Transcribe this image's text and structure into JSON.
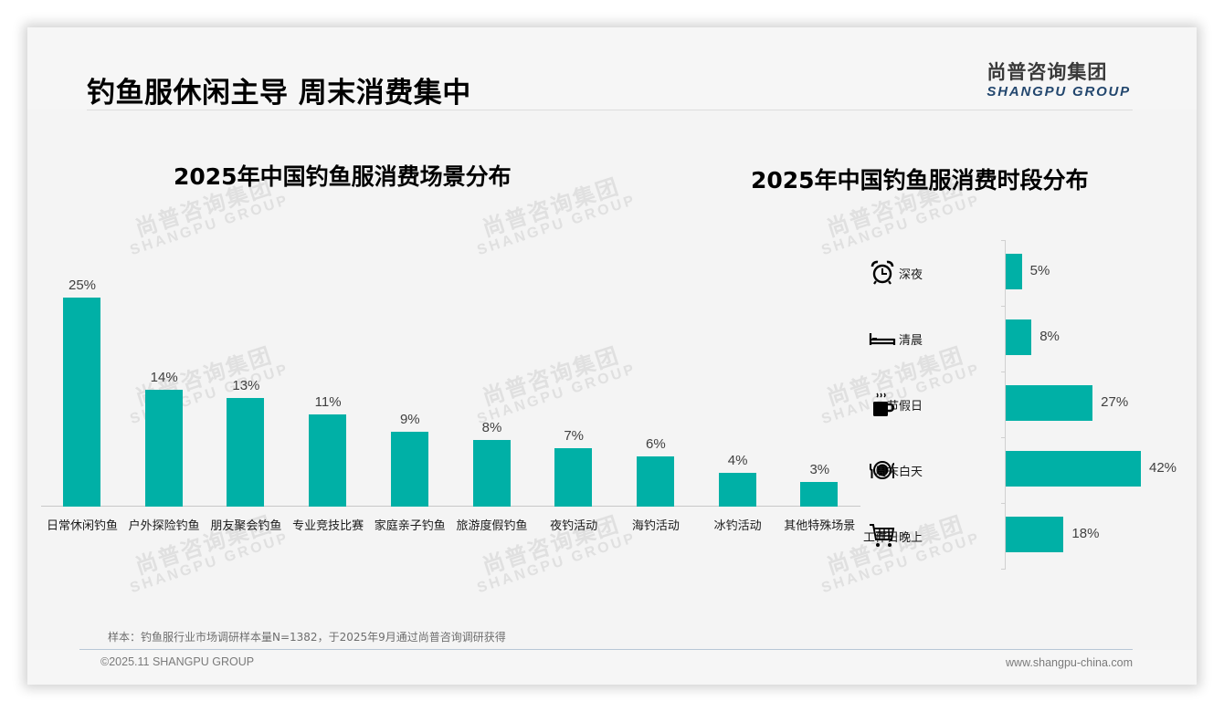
{
  "header": {
    "title": "钓鱼服休闲主导 周末消费集中",
    "logo_cn": "尚普咨询集团",
    "logo_en": "SHANGPU GROUP"
  },
  "watermark": {
    "cn": "尚普咨询集团",
    "en": "SHANGPU GROUP"
  },
  "colors": {
    "bar": "#00b0a6",
    "logo_en": "#23476e",
    "background": "#f4f4f4"
  },
  "icons": {
    "row0": "alarm-clock-icon",
    "row1": "bed-icon",
    "row2": "hot-coffee-mug-icon",
    "row3": "plate-fork-knife-icon",
    "row4": "shopping-cart-icon"
  },
  "footer": {
    "note": "样本：钓鱼服行业市场调研样本量N=1382，于2025年9月通过尚普咨询调研获得",
    "copyright": "©2025.11 SHANGPU GROUP",
    "website": "www.shangpu-china.com"
  },
  "chart_data": [
    {
      "type": "bar",
      "title": "2025年中国钓鱼服消费场景分布",
      "xlabel": "",
      "ylabel": "",
      "categories": [
        "日常休闲钓鱼",
        "户外探险钓鱼",
        "朋友聚会钓鱼",
        "专业竞技比赛",
        "家庭亲子钓鱼",
        "旅游度假钓鱼",
        "夜钓活动",
        "海钓活动",
        "冰钓活动",
        "其他特殊场景"
      ],
      "values": [
        25,
        14,
        13,
        11,
        9,
        8,
        7,
        6,
        4,
        3
      ],
      "labels": [
        "25%",
        "14%",
        "13%",
        "11%",
        "9%",
        "8%",
        "7%",
        "6%",
        "4%",
        "3%"
      ],
      "ylim": [
        0,
        25
      ],
      "grid": false,
      "legend": "none"
    },
    {
      "type": "bar",
      "orientation": "horizontal",
      "title": "2025年中国钓鱼服消费时段分布",
      "xlabel": "",
      "ylabel": "",
      "categories": [
        "深夜",
        "清晨",
        "节假日",
        "周末白天",
        "工作日晚上"
      ],
      "values": [
        5,
        8,
        27,
        42,
        18
      ],
      "labels": [
        "5%",
        "8%",
        "27%",
        "42%",
        "18%"
      ],
      "xlim": [
        0,
        42
      ],
      "grid": false,
      "legend": "none"
    }
  ]
}
